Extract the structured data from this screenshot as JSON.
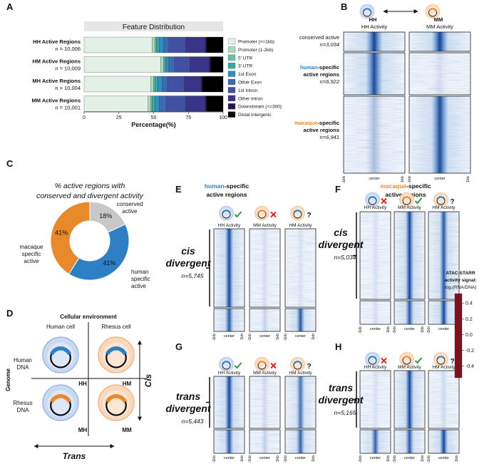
{
  "panel_labels": [
    "A",
    "B",
    "C",
    "D",
    "E",
    "F",
    "G",
    "H"
  ],
  "chart_data": [
    {
      "type": "bar",
      "orientation": "horizontal",
      "stacked": true,
      "title": "Feature Distribution",
      "categories": [
        "HH Active Regions",
        "HM Active Regions",
        "MH Active Regions",
        "MM Active Regions"
      ],
      "category_counts": [
        "n = 10,006",
        "n = 10,009",
        "n = 10,004",
        "n = 10,001"
      ],
      "xlabel": "Percentage(%)",
      "xlim": [
        0,
        100
      ],
      "xticks": [
        0,
        25,
        50,
        75,
        100
      ],
      "legend": "right",
      "series": [
        {
          "name": "Promoter (<=1kb)",
          "color": "#e2f0e6",
          "values": [
            49,
            55,
            48,
            46
          ]
        },
        {
          "name": "Promoter (1-2kb)",
          "color": "#a9d8bd",
          "values": [
            2,
            2,
            2,
            2
          ]
        },
        {
          "name": "5' UTR",
          "color": "#66c2a4",
          "values": [
            1,
            1,
            1,
            1
          ]
        },
        {
          "name": "3' UTR",
          "color": "#3aa6a6",
          "values": [
            2,
            1,
            2,
            2
          ]
        },
        {
          "name": "1st Exon",
          "color": "#2f8fc0",
          "values": [
            3,
            2,
            3,
            3
          ]
        },
        {
          "name": "Other Exon",
          "color": "#3d6bb3",
          "values": [
            4,
            4,
            4,
            5
          ]
        },
        {
          "name": "1st Intron",
          "color": "#4150a3",
          "values": [
            12,
            11,
            12,
            14
          ]
        },
        {
          "name": "Other Intron",
          "color": "#3a3489",
          "values": [
            14,
            14,
            12,
            14
          ]
        },
        {
          "name": "Downstream (<=300)",
          "color": "#241552",
          "values": [
            1,
            1,
            1,
            1
          ]
        },
        {
          "name": "Distal Intergenic",
          "color": "#000000",
          "values": [
            12,
            9,
            15,
            12
          ]
        }
      ]
    },
    {
      "type": "pie",
      "donut": true,
      "title": [
        "% active regions with",
        "conserved and divergent activity"
      ],
      "categories": [
        [
          "conserved",
          "active"
        ],
        [
          "human",
          "specific",
          "active"
        ],
        [
          "macaque",
          "specific",
          "active"
        ]
      ],
      "values": [
        18,
        41,
        41
      ],
      "value_labels": [
        "18%",
        "41%",
        "41%"
      ],
      "colors": [
        "#c8c8c8",
        "#2f7fc4",
        "#e8892c"
      ]
    },
    {
      "type": "colorbar",
      "title": [
        "ATAC-STARR",
        "activity signal:",
        "log₂(RNA/DNA)"
      ],
      "clim": [
        -0.55,
        0.52
      ],
      "ticks": [
        0.4,
        0.2,
        {
          "value": 0,
          "label": "0.0"
        },
        -0.2,
        -0.4
      ],
      "colors": [
        "#7f1020",
        "#e8907a",
        "#f7f7f7",
        "#8fbfe0",
        "#1d3c8c"
      ]
    }
  ],
  "heatmap_ticks": [
    "-1kb",
    "center",
    "1kb"
  ],
  "panel_b": {
    "columns": [
      {
        "icon_label": "HH",
        "label": "HH Activity"
      },
      {
        "icon_label": "MM",
        "label": "MM Activity"
      }
    ],
    "blocks": [
      {
        "name": "conserved active",
        "n": "n=3,034"
      },
      {
        "species": "human",
        "rest": "-specific",
        "line2": "active regions",
        "n": "n=6,922"
      },
      {
        "species": "macaque",
        "rest": "-specific",
        "line2": "active regions",
        "n": "n=6,941"
      }
    ]
  },
  "panel_d": {
    "title": "Cellular environment",
    "columns": [
      "Human cell",
      "Rhesus cell"
    ],
    "rows": [
      [
        "Human",
        "DNA"
      ],
      [
        "Rhesus",
        "DNA"
      ]
    ],
    "axis": "Genome",
    "cells": [
      "HH",
      "HM",
      "MH",
      "MM"
    ],
    "cis": "Cis",
    "trans": "Trans"
  },
  "panels": [
    {
      "header": {
        "species": "human",
        "rest": "-specific",
        "line2": "active regions"
      },
      "columns": [
        {
          "label": "HH Activity"
        },
        {
          "label": "MM Activity"
        },
        {
          "label": "HM Activity",
          "flag": "?"
        }
      ],
      "group": [
        "cis",
        "divergent"
      ],
      "n": "n=5,745"
    },
    {
      "header": {
        "species": "macaque",
        "rest": "-specific",
        "line2": "active regions"
      },
      "columns": [
        {
          "label": "HH Activity"
        },
        {
          "label": "MM Activity"
        },
        {
          "label": "HM Activity",
          "flag": "?"
        }
      ],
      "group": [
        "cis",
        "divergent"
      ],
      "n": "n=5,034"
    },
    {
      "columns": [
        {
          "label": "HH Activity"
        },
        {
          "label": "MM Activity"
        },
        {
          "label": "HM Activity",
          "flag": "?"
        }
      ],
      "group": [
        "trans",
        "divergent"
      ],
      "n": "n=5,443"
    },
    {
      "columns": [
        {
          "label": "HH Activity"
        },
        {
          "label": "MM Activity"
        },
        {
          "label": "HM Activity",
          "flag": "?"
        }
      ],
      "group": [
        "trans",
        "divergent"
      ],
      "n": "n=5,165"
    }
  ]
}
